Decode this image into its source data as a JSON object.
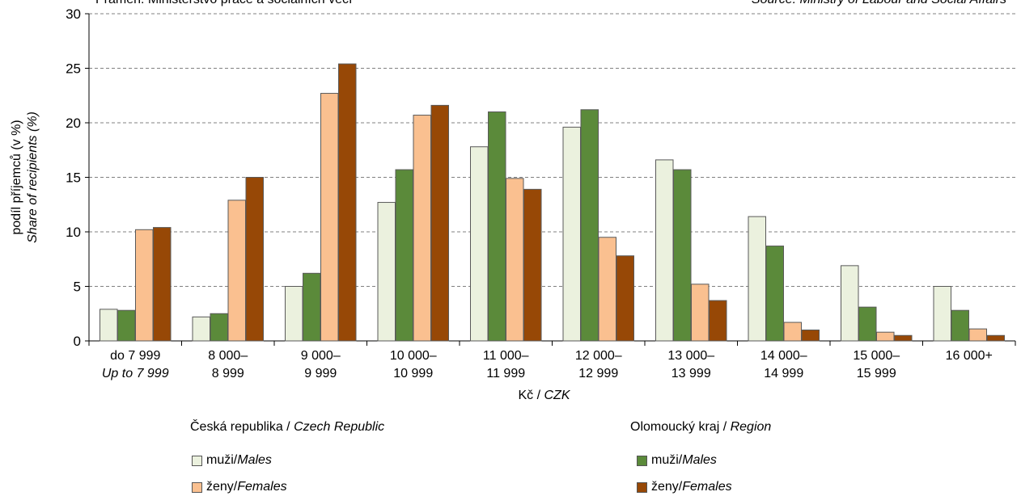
{
  "source": {
    "left": "Pramen: Ministerstvo práce a sociálních věcí",
    "right": "Source: Ministry of Labour and Social Affairs"
  },
  "colors": {
    "cz_males": "#ebf1de",
    "cz_females": "#fac090",
    "reg_males": "#5b8a3a",
    "reg_females": "#974806",
    "grid": "#808080",
    "bar_stroke": "#595959"
  },
  "legend": {
    "cz_title": "Česká republika",
    "cz_title_en": "Czech Republic",
    "reg_title": "Olomoucký kraj",
    "reg_title_en": "Region",
    "males": "muži",
    "males_en": "Males",
    "females": "ženy",
    "females_en": "Females",
    "sep": " / "
  },
  "chart_data": {
    "type": "bar",
    "ylabel": "podíl příjemců (v %)",
    "ylabel_en": "Share of recipients (%)",
    "xlabel": "Kč",
    "xlabel_en": "CZK",
    "ylim": [
      0,
      30
    ],
    "yticks": [
      0,
      5,
      10,
      15,
      20,
      25,
      30
    ],
    "grid": true,
    "categories": [
      [
        "do 7 999",
        "Up to 7 999"
      ],
      [
        "8 000–",
        "8 999"
      ],
      [
        "9 000–",
        "9 999"
      ],
      [
        "10 000–",
        "10 999"
      ],
      [
        "11 000–",
        "11 999"
      ],
      [
        "12 000–",
        "12 999"
      ],
      [
        "13 000–",
        "13 999"
      ],
      [
        "14 000–",
        "14 999"
      ],
      [
        "15 000–",
        "15 999"
      ],
      [
        "16 000+",
        ""
      ]
    ],
    "series": [
      {
        "name": "Česká republika – muži / Males",
        "color_key": "cz_males",
        "values": [
          2.9,
          2.2,
          5.0,
          12.7,
          17.8,
          19.6,
          16.6,
          11.4,
          6.9,
          5.0
        ]
      },
      {
        "name": "Olomoucký kraj – muži / Males",
        "color_key": "reg_males",
        "values": [
          2.8,
          2.5,
          6.2,
          15.7,
          21.0,
          21.2,
          15.7,
          8.7,
          3.1,
          2.8
        ]
      },
      {
        "name": "Česká republika – ženy / Females",
        "color_key": "cz_females",
        "values": [
          10.2,
          12.9,
          22.7,
          20.7,
          14.9,
          9.5,
          5.2,
          1.7,
          0.8,
          1.1
        ]
      },
      {
        "name": "Olomoucký kraj – ženy / Females",
        "color_key": "reg_females",
        "values": [
          10.4,
          15.0,
          25.4,
          21.6,
          13.9,
          7.8,
          3.7,
          1.0,
          0.5,
          0.5
        ]
      }
    ]
  }
}
